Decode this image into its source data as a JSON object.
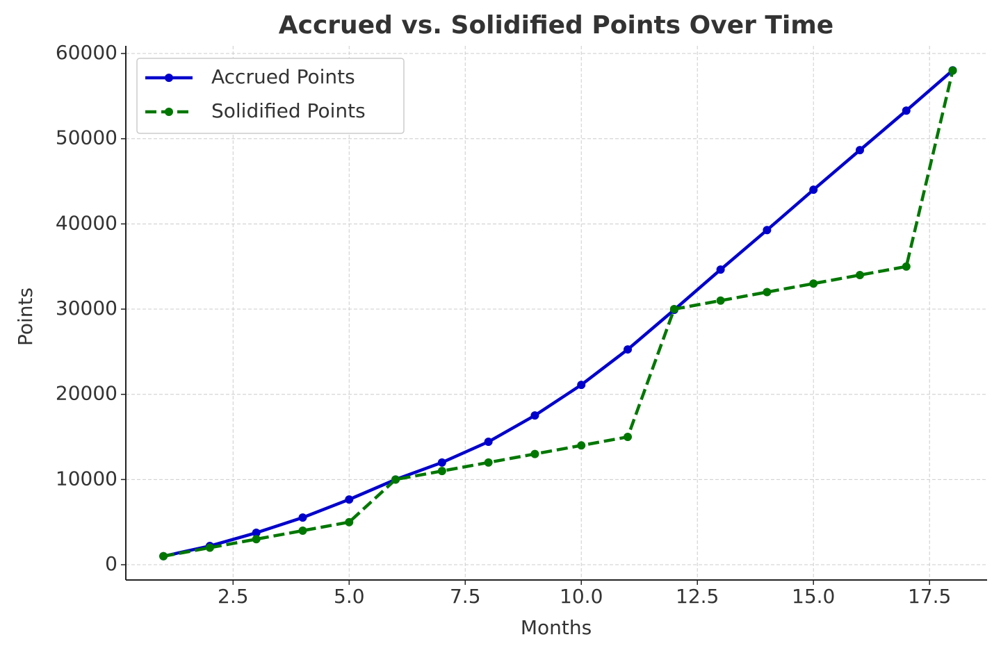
{
  "chart_data": {
    "type": "line",
    "title": "Accrued vs. Solidified Points Over Time",
    "x_label": "Months",
    "y_label": "Points",
    "x": [
      1,
      2,
      3,
      4,
      5,
      6,
      7,
      8,
      9,
      10,
      11,
      12,
      13,
      14,
      15,
      16,
      17,
      18
    ],
    "series": [
      {
        "name": "Accrued Points",
        "color": "#0000cc",
        "dash": "solid",
        "values": [
          1000,
          2200,
          3750,
          5540,
          7660,
          10000,
          12000,
          14430,
          17520,
          21110,
          25270,
          29910,
          34640,
          39280,
          44010,
          48660,
          53300,
          58030
        ]
      },
      {
        "name": "Solidified Points",
        "color": "#007700",
        "dash": "dashed",
        "values": [
          1000,
          2000,
          3000,
          4000,
          5000,
          10000,
          11000,
          12000,
          13000,
          14000,
          15000,
          30000,
          31000,
          32000,
          33000,
          34000,
          35000,
          58000
        ]
      }
    ],
    "xlim": [
      0.19,
      18.74
    ],
    "ylim": [
      -1790,
      60900
    ],
    "xticks": [
      2.5,
      {
        "value": 5,
        "label": "5.0"
      },
      7.5,
      {
        "value": 10,
        "label": "10.0"
      },
      12.5,
      {
        "value": 15,
        "label": "15.0"
      },
      17.5
    ],
    "yticks": [
      0,
      10000,
      20000,
      30000,
      40000,
      50000,
      60000
    ],
    "grid": true,
    "legend": "upper-left"
  }
}
